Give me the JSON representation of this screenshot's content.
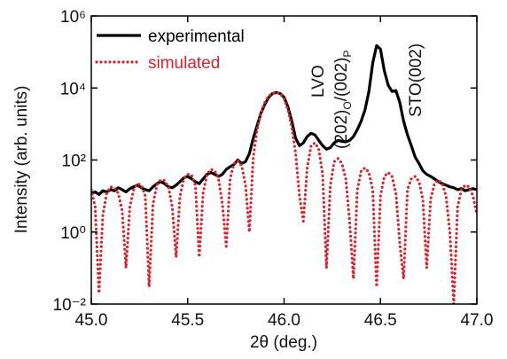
{
  "chart_data": {
    "type": "line",
    "x_label": "2θ (deg.)",
    "y_label": "Intensity (arb. units)",
    "log_y": true,
    "legend": "upper left",
    "annotations": [
      "LVO",
      [
        "(202)",
        "O",
        "/(002)",
        "P"
      ],
      "STO(002)"
    ],
    "xlim": [
      45,
      47
    ],
    "xticks": [
      {
        "value": 45,
        "label": "45.0"
      },
      {
        "value": 45.5,
        "label": "45.5"
      },
      {
        "value": 46,
        "label": "46.0"
      },
      {
        "value": 46.5,
        "label": "46.5"
      },
      {
        "value": 47,
        "label": "47.0"
      }
    ],
    "ylim": [
      0.01,
      1000000
    ],
    "yticks": [
      {
        "value": 0.01,
        "label": "10⁻²"
      },
      {
        "value": 1,
        "label": "10⁰"
      },
      {
        "value": 100,
        "label": "10²"
      },
      {
        "value": 10000,
        "label": "10⁴"
      },
      {
        "value": 1000000,
        "label": "10⁶"
      }
    ],
    "x": [
      45,
      45.02,
      45.04,
      45.06,
      45.08,
      45.1,
      45.12,
      45.14,
      45.16,
      45.18,
      45.2,
      45.22,
      45.24,
      45.26,
      45.28,
      45.3,
      45.32,
      45.34,
      45.36,
      45.38,
      45.4,
      45.42,
      45.44,
      45.46,
      45.48,
      45.5,
      45.52,
      45.54,
      45.56,
      45.58,
      45.6,
      45.62,
      45.64,
      45.66,
      45.68,
      45.7,
      45.72,
      45.74,
      45.76,
      45.78,
      45.8,
      45.82,
      45.84,
      45.86,
      45.88,
      45.9,
      45.92,
      45.94,
      45.96,
      45.98,
      46,
      46.02,
      46.04,
      46.06,
      46.08,
      46.1,
      46.12,
      46.14,
      46.16,
      46.18,
      46.2,
      46.22,
      46.24,
      46.26,
      46.28,
      46.3,
      46.32,
      46.34,
      46.36,
      46.38,
      46.4,
      46.42,
      46.44,
      46.46,
      46.48,
      46.5,
      46.52,
      46.54,
      46.56,
      46.58,
      46.6,
      46.62,
      46.64,
      46.66,
      46.68,
      46.7,
      46.72,
      46.74,
      46.76,
      46.78,
      46.8,
      46.82,
      46.84,
      46.86,
      46.88,
      46.9,
      46.92,
      46.94,
      46.96,
      46.98,
      47
    ],
    "series": [
      {
        "name": "experimental",
        "color": "#000000",
        "style": "solid",
        "values": [
          12,
          13,
          11,
          14,
          13,
          15,
          14,
          17,
          15,
          13,
          16,
          18,
          20,
          17,
          15,
          14,
          18,
          22,
          25,
          22,
          18,
          17,
          20,
          25,
          32,
          35,
          30,
          25,
          22,
          30,
          40,
          45,
          40,
          35,
          40,
          55,
          65,
          75,
          100,
          80,
          90,
          150,
          400,
          900,
          2000,
          3500,
          5500,
          7000,
          7500,
          7000,
          5500,
          3000,
          1200,
          400,
          250,
          300,
          450,
          550,
          500,
          350,
          250,
          200,
          220,
          300,
          350,
          330,
          320,
          350,
          450,
          700,
          1200,
          2500,
          8000,
          50000,
          150000,
          120000,
          30000,
          12000,
          8000,
          8500,
          4000,
          1200,
          500,
          250,
          120,
          80,
          50,
          40,
          35,
          30,
          25,
          22,
          20,
          18,
          17,
          15,
          16,
          14,
          15,
          16,
          15
        ]
      },
      {
        "name": "simulated",
        "color": "#e0202a",
        "style": "dotted",
        "values": [
          15,
          5,
          0.02,
          3,
          12,
          18,
          17,
          12,
          4,
          0.1,
          5,
          15,
          22,
          20,
          10,
          0.03,
          6,
          20,
          28,
          27,
          18,
          5,
          0.2,
          10,
          30,
          40,
          38,
          20,
          0.2,
          12,
          40,
          55,
          50,
          30,
          6,
          0.4,
          30,
          80,
          95,
          70,
          20,
          1,
          120,
          700,
          2000,
          4000,
          6000,
          7000,
          7500,
          7000,
          5000,
          2500,
          800,
          150,
          10,
          2,
          60,
          250,
          300,
          200,
          40,
          0.1,
          20,
          90,
          110,
          80,
          30,
          2,
          0.05,
          15,
          50,
          60,
          45,
          15,
          0.03,
          10,
          35,
          45,
          35,
          12,
          0.5,
          0.05,
          15,
          30,
          35,
          25,
          8,
          0.1,
          8,
          22,
          28,
          22,
          10,
          1,
          0.01,
          5,
          15,
          20,
          18,
          10,
          3
        ]
      }
    ]
  }
}
